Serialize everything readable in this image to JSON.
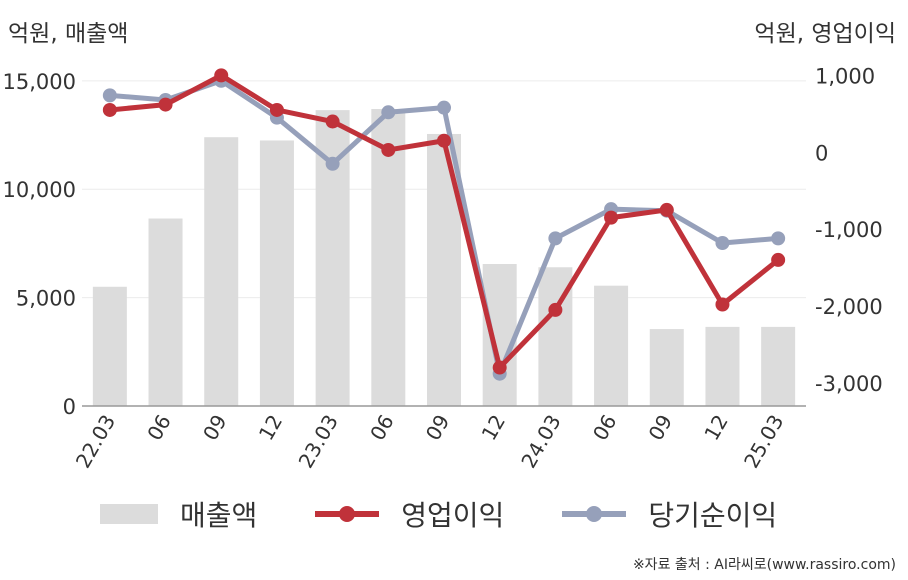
{
  "units": {
    "left": "억원, 매출액",
    "right": "억원, 영업이익"
  },
  "legend": [
    {
      "label": "매출액",
      "color": "#dcdcdc",
      "kind": "bar"
    },
    {
      "label": "영업이익",
      "color": "#c0323a",
      "kind": "line"
    },
    {
      "label": "당기순이익",
      "color": "#96a0ba",
      "kind": "line"
    }
  ],
  "source": "※자료 출처 : AI라씨로(www.rassiro.com)",
  "chart_data": {
    "type": "bar+line",
    "categories": [
      "22.03",
      "06",
      "09",
      "12",
      "23.03",
      "06",
      "09",
      "12",
      "24.03",
      "06",
      "09",
      "12",
      "25.03"
    ],
    "left_axis": {
      "ticks": [
        "0",
        "5,000",
        "10,000",
        "15,000"
      ],
      "tick_values": [
        0,
        5000,
        10000,
        15000
      ],
      "ylim": [
        0,
        15500
      ]
    },
    "right_axis": {
      "ticks": [
        "-3,000",
        "-2,000",
        "-1,000",
        "0",
        "1,000"
      ],
      "tick_values": [
        -3000,
        -2000,
        -1000,
        0,
        1000
      ],
      "ylim": [
        -3300,
        1070
      ]
    },
    "series": [
      {
        "name": "매출액",
        "axis": "left",
        "type": "bar",
        "color": "#dcdcdc",
        "values": [
          5500,
          8650,
          12400,
          12250,
          13650,
          13700,
          12550,
          6550,
          6400,
          5550,
          3550,
          3650,
          3650
        ]
      },
      {
        "name": "영업이익",
        "axis": "right",
        "type": "line",
        "color": "#c0323a",
        "values": [
          550,
          620,
          1000,
          550,
          400,
          30,
          150,
          -2800,
          -2050,
          -850,
          -750,
          -1980,
          -1400
        ]
      },
      {
        "name": "당기순이익",
        "axis": "right",
        "type": "line",
        "color": "#96a0ba",
        "values": [
          740,
          680,
          930,
          450,
          -150,
          520,
          580,
          -2880,
          -1120,
          -740,
          -760,
          -1180,
          -1120
        ]
      }
    ]
  }
}
